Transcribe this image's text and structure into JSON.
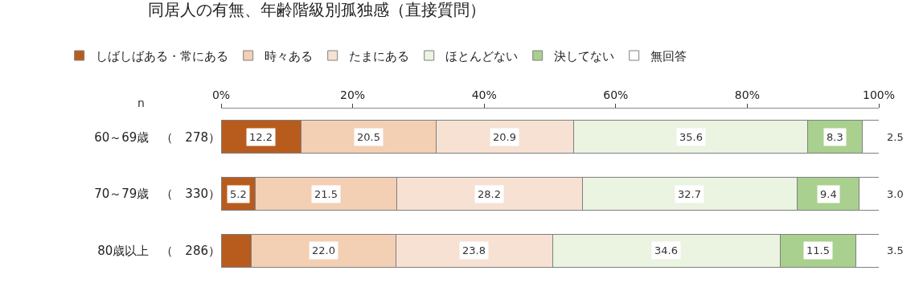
{
  "chart_data": {
    "type": "bar",
    "orientation": "horizontal",
    "stacked": true,
    "title": "同居人の有無、年齢階級別孤独感（直接質問）",
    "categories": [
      "60～69歳　（　278）",
      "70～79歳　（　330）",
      "80歳以上　（　286）"
    ],
    "series": [
      {
        "name": "しばしばある・常にある",
        "color": "#b85c1e",
        "values": [
          12.2,
          5.2,
          4.6
        ],
        "value_labels": [
          "12.2",
          "5.2",
          null
        ]
      },
      {
        "name": "時々ある",
        "color": "#f3cfb4",
        "values": [
          20.5,
          21.5,
          22.0
        ],
        "value_labels": [
          "20.5",
          "21.5",
          "22.0"
        ]
      },
      {
        "name": "たまにある",
        "color": "#f6e1d3",
        "values": [
          20.9,
          28.2,
          23.8
        ],
        "value_labels": [
          "20.9",
          "28.2",
          "23.8"
        ]
      },
      {
        "name": "ほとんどない",
        "color": "#ebf3e1",
        "values": [
          35.6,
          32.7,
          34.6
        ],
        "value_labels": [
          "35.6",
          "32.7",
          "34.6"
        ]
      },
      {
        "name": "決してない",
        "color": "#a9d08e",
        "values": [
          8.3,
          9.4,
          11.5
        ],
        "value_labels": [
          "8.3",
          "9.4",
          "11.5"
        ]
      },
      {
        "name": "無回答",
        "color": "#ffffff",
        "values": [
          2.5,
          3.0,
          3.5
        ],
        "value_labels": [
          "2.5",
          "3.0",
          "3.5"
        ]
      }
    ],
    "xlim": [
      0,
      100
    ],
    "xticks": [
      {
        "value": 0,
        "label": "0%"
      },
      {
        "value": 20,
        "label": "20%"
      },
      {
        "value": 40,
        "label": "40%"
      },
      {
        "value": 60,
        "label": "60%"
      },
      {
        "value": 80,
        "label": "80%"
      },
      {
        "value": 100,
        "label": "100%"
      }
    ],
    "annotations": [
      "n"
    ],
    "legend": "top"
  }
}
